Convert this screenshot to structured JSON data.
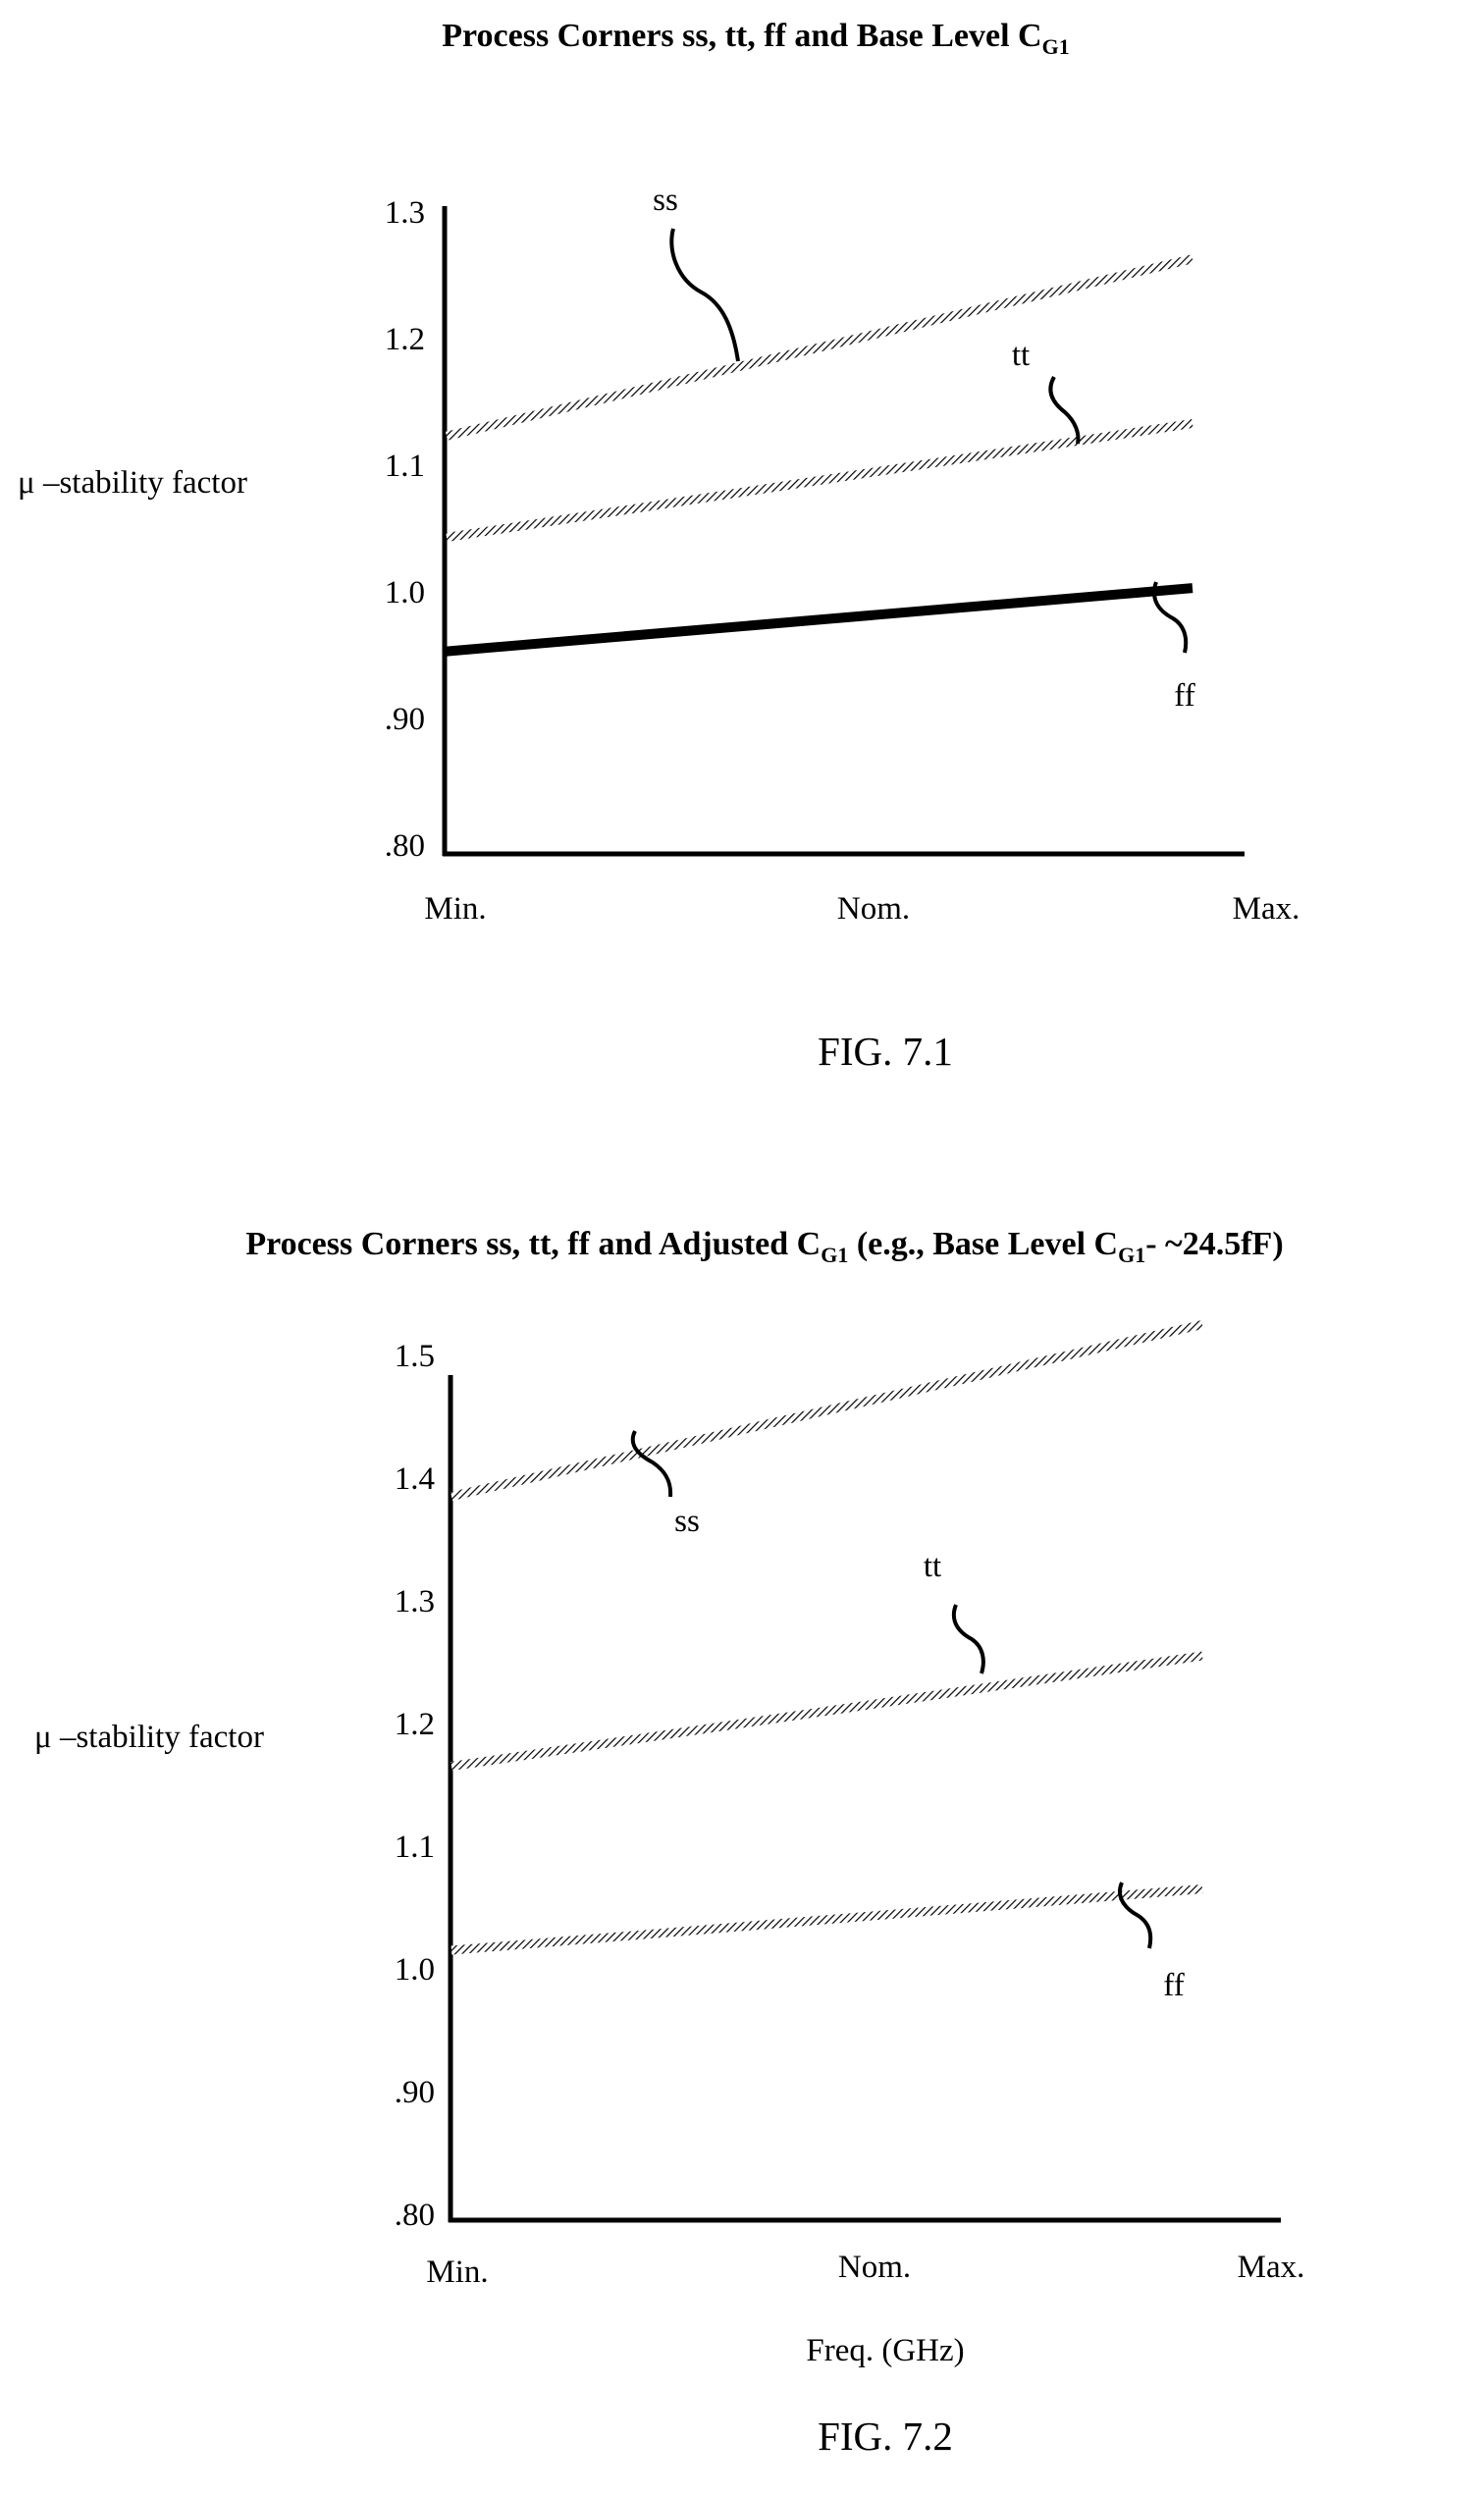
{
  "chart_data": [
    {
      "type": "line",
      "title_main": "Process Corners ss, tt, ff and Base Level C",
      "title_sub": "G1",
      "title_tail": "",
      "ylabel": "μ –stability factor",
      "xlabel": "",
      "categories": [
        "Min.",
        "Nom.",
        "Max."
      ],
      "yticks": [
        ".80",
        ".90",
        "1.0",
        "1.1",
        "1.2",
        "1.3"
      ],
      "ylim": [
        0.8,
        1.3
      ],
      "figure_label": "FIG. 7.1",
      "series": [
        {
          "name": "ss",
          "style": "hatched",
          "x": [
            0,
            2
          ],
          "y": [
            1.13,
            1.27
          ]
        },
        {
          "name": "tt",
          "style": "hatched",
          "x": [
            0,
            2
          ],
          "y": [
            1.05,
            1.14
          ]
        },
        {
          "name": "ff",
          "style": "solid",
          "x": [
            0,
            2
          ],
          "y": [
            0.96,
            1.01
          ]
        }
      ]
    },
    {
      "type": "line",
      "title_main": "Process Corners ss, tt, ff and Adjusted C",
      "title_sub": "G1",
      "title_mid": " (e.g., Base Level C",
      "title_sub2": "G1",
      "title_tail": "- ~24.5fF)",
      "ylabel": "μ –stability factor",
      "xlabel": "Freq. (GHz)",
      "categories": [
        "Min.",
        "Nom.",
        "Max."
      ],
      "yticks": [
        ".80",
        ".90",
        "1.0",
        "1.1",
        "1.2",
        "1.3",
        "1.4",
        "1.5"
      ],
      "ylim": [
        0.8,
        1.5
      ],
      "figure_label": "FIG. 7.2",
      "series": [
        {
          "name": "ss",
          "style": "hatched",
          "x": [
            0,
            2
          ],
          "y": [
            1.39,
            1.53
          ]
        },
        {
          "name": "tt",
          "style": "hatched",
          "x": [
            0,
            2
          ],
          "y": [
            1.17,
            1.26
          ]
        },
        {
          "name": "ff",
          "style": "hatched",
          "x": [
            0,
            2
          ],
          "y": [
            1.02,
            1.07
          ]
        }
      ]
    }
  ]
}
